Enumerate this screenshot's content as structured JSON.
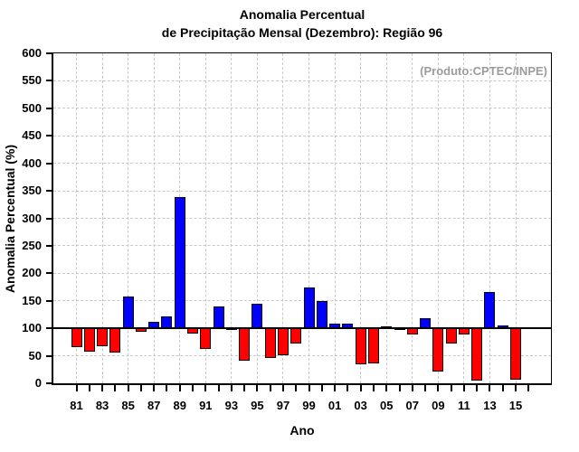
{
  "figure": {
    "title_line1": "Anomalia Percentual",
    "title_line2": "de Precipitação Mensal (Dezembro): Região 96",
    "annotation": "(Produto:CPTEC/INPE)"
  },
  "colors": {
    "bar_above_baseline": "#0000ff",
    "bar_below_baseline": "#ff0000",
    "grid": "#c8c8c8",
    "axis": "#000000",
    "annotation": "#9c9c9c",
    "background": "#ffffff"
  },
  "chart_data": {
    "type": "bar",
    "title": "Anomalia Percentual de Precipitação Mensal (Dezembro): Região 96",
    "xlabel": "Ano",
    "ylabel": "Anomalia Percentual (%)",
    "ylim": [
      0,
      600
    ],
    "ytick_step": 50,
    "baseline": 100,
    "grid": "dashed, horizontal every 50, vertical every 2 years",
    "legend_position": "none",
    "annotation": "(Produto:CPTEC/INPE)",
    "color_rule": "blue if value > 100, red if value < 100",
    "positive_color": "#0000ff",
    "negative_color": "#ff0000",
    "start_year": 1981,
    "categories": [
      "81",
      "82",
      "83",
      "84",
      "85",
      "86",
      "87",
      "88",
      "89",
      "90",
      "91",
      "92",
      "93",
      "94",
      "95",
      "96",
      "97",
      "98",
      "99",
      "00",
      "01",
      "02",
      "03",
      "04",
      "05",
      "06",
      "07",
      "08",
      "09",
      "10",
      "11",
      "12",
      "13",
      "14",
      "15"
    ],
    "x_labeled_ticks": [
      "81",
      "83",
      "85",
      "87",
      "89",
      "91",
      "93",
      "95",
      "97",
      "99",
      "01",
      "03",
      "05",
      "07",
      "09",
      "11",
      "13",
      "15"
    ],
    "values": [
      66,
      58,
      68,
      56,
      158,
      94,
      111,
      122,
      339,
      91,
      62,
      140,
      101,
      41,
      145,
      46,
      51,
      72,
      174,
      150,
      108,
      108,
      35,
      36,
      103,
      100,
      89,
      118,
      21,
      72,
      88,
      5,
      166,
      106,
      6
    ]
  }
}
